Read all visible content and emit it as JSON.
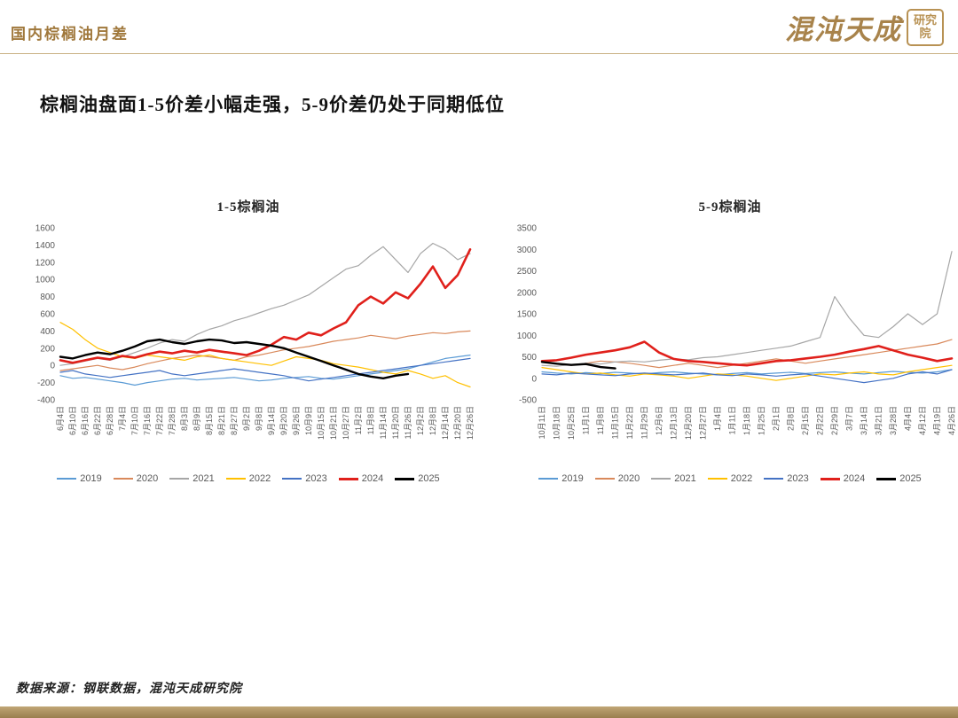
{
  "header": {
    "title": "国内棕榈油月差",
    "logo_brand": "混沌天成",
    "logo_seal": "研究院",
    "accent_color": "#A0783C"
  },
  "subtitle": "棕榈油盘面1-5价差小幅走强，5-9价差仍处于同期低位",
  "footer": {
    "source": "数据来源：钢联数据，混沌天成研究院"
  },
  "theme": {
    "bottom_bar_color": "#A98E5E",
    "tick_label_color": "#595959"
  },
  "chart_data": [
    {
      "type": "line",
      "title": "1-5棕榈油",
      "ylim": [
        -400,
        1600
      ],
      "ytick_step": 200,
      "grid": false,
      "legend_position": "bottom",
      "categories": [
        "6月4日",
        "6月10日",
        "6月16日",
        "6月22日",
        "6月28日",
        "7月4日",
        "7月10日",
        "7月16日",
        "7月22日",
        "7月28日",
        "8月3日",
        "8月9日",
        "8月15日",
        "8月21日",
        "8月27日",
        "9月2日",
        "9月8日",
        "9月14日",
        "9月20日",
        "9月26日",
        "10月9日",
        "10月15日",
        "10月21日",
        "10月27日",
        "11月2日",
        "11月8日",
        "11月14日",
        "11月20日",
        "11月26日",
        "12月2日",
        "12月8日",
        "12月14日",
        "12月20日",
        "12月26日"
      ],
      "series": [
        {
          "name": "2019",
          "color": "#5B9BD5",
          "width": 1.2,
          "values": [
            -120,
            -150,
            -140,
            -160,
            -180,
            -200,
            -230,
            -200,
            -180,
            -160,
            -150,
            -170,
            -160,
            -150,
            -140,
            -160,
            -180,
            -170,
            -150,
            -140,
            -130,
            -150,
            -160,
            -140,
            -120,
            -100,
            -80,
            -60,
            -40,
            0,
            40,
            80,
            100,
            120
          ]
        },
        {
          "name": "2020",
          "color": "#D9895B",
          "width": 1.2,
          "values": [
            -60,
            -40,
            -20,
            0,
            -30,
            -50,
            -20,
            20,
            50,
            80,
            100,
            120,
            100,
            80,
            60,
            100,
            120,
            150,
            180,
            200,
            220,
            250,
            280,
            300,
            320,
            350,
            330,
            310,
            340,
            360,
            380,
            370,
            390,
            400
          ]
        },
        {
          "name": "2021",
          "color": "#A6A6A6",
          "width": 1.2,
          "values": [
            0,
            20,
            50,
            80,
            60,
            100,
            150,
            200,
            260,
            300,
            280,
            360,
            420,
            460,
            520,
            560,
            610,
            660,
            700,
            760,
            820,
            920,
            1020,
            1120,
            1160,
            1280,
            1380,
            1230,
            1080,
            1300,
            1420,
            1350,
            1230,
            1300
          ]
        },
        {
          "name": "2022",
          "color": "#FFC000",
          "width": 1.2,
          "values": [
            500,
            420,
            300,
            200,
            150,
            100,
            80,
            120,
            100,
            80,
            60,
            100,
            120,
            80,
            60,
            40,
            20,
            0,
            50,
            100,
            80,
            60,
            20,
            0,
            -20,
            -50,
            -80,
            -100,
            -60,
            -100,
            -150,
            -120,
            -200,
            -250
          ]
        },
        {
          "name": "2023",
          "color": "#4472C4",
          "width": 1.2,
          "values": [
            -80,
            -60,
            -100,
            -120,
            -140,
            -120,
            -100,
            -80,
            -60,
            -100,
            -120,
            -100,
            -80,
            -60,
            -40,
            -60,
            -80,
            -100,
            -120,
            -150,
            -180,
            -160,
            -140,
            -120,
            -100,
            -80,
            -60,
            -40,
            -20,
            0,
            20,
            40,
            60,
            80
          ]
        },
        {
          "name": "2024",
          "color": "#E0201B",
          "width": 2.6,
          "values": [
            60,
            30,
            60,
            90,
            70,
            110,
            90,
            130,
            160,
            140,
            170,
            150,
            180,
            160,
            140,
            120,
            170,
            240,
            330,
            300,
            380,
            350,
            430,
            500,
            700,
            800,
            720,
            850,
            780,
            950,
            1150,
            900,
            1050,
            1350
          ]
        },
        {
          "name": "2025",
          "color": "#000000",
          "width": 2.4,
          "values": [
            100,
            80,
            120,
            150,
            130,
            170,
            220,
            280,
            300,
            270,
            250,
            280,
            300,
            290,
            260,
            270,
            250,
            230,
            200,
            150,
            100,
            50,
            0,
            -50,
            -100,
            -130,
            -150,
            -120,
            -100,
            null,
            null,
            null,
            null,
            null
          ]
        }
      ]
    },
    {
      "type": "line",
      "title": "5-9棕榈油",
      "ylim": [
        -500,
        3500
      ],
      "ytick_step": 500,
      "grid": false,
      "legend_position": "bottom",
      "categories": [
        "10月11日",
        "10月18日",
        "10月25日",
        "11月1日",
        "11月8日",
        "11月15日",
        "11月22日",
        "11月29日",
        "12月6日",
        "12月13日",
        "12月20日",
        "12月27日",
        "1月4日",
        "1月11日",
        "1月18日",
        "1月25日",
        "2月1日",
        "2月8日",
        "2月15日",
        "2月22日",
        "2月29日",
        "3月7日",
        "3月14日",
        "3月21日",
        "3月28日",
        "4月4日",
        "4月12日",
        "4月19日",
        "4月26日"
      ],
      "series": [
        {
          "name": "2019",
          "color": "#5B9BD5",
          "width": 1.2,
          "values": [
            150,
            120,
            100,
            130,
            110,
            140,
            120,
            100,
            130,
            150,
            120,
            100,
            80,
            110,
            130,
            100,
            120,
            140,
            110,
            130,
            150,
            120,
            100,
            130,
            160,
            140,
            120,
            150,
            200
          ]
        },
        {
          "name": "2020",
          "color": "#D9895B",
          "width": 1.2,
          "values": [
            400,
            350,
            300,
            350,
            400,
            380,
            350,
            300,
            250,
            300,
            350,
            300,
            250,
            300,
            350,
            400,
            450,
            400,
            350,
            400,
            450,
            500,
            550,
            600,
            650,
            700,
            750,
            800,
            900
          ]
        },
        {
          "name": "2021",
          "color": "#A6A6A6",
          "width": 1.2,
          "values": [
            300,
            280,
            320,
            350,
            330,
            380,
            400,
            380,
            420,
            450,
            430,
            480,
            500,
            550,
            600,
            650,
            700,
            750,
            850,
            950,
            1900,
            1400,
            1000,
            950,
            1200,
            1500,
            1250,
            1500,
            2950
          ]
        },
        {
          "name": "2022",
          "color": "#FFC000",
          "width": 1.2,
          "values": [
            250,
            200,
            150,
            100,
            120,
            80,
            50,
            100,
            80,
            50,
            0,
            50,
            100,
            80,
            50,
            0,
            -50,
            0,
            50,
            100,
            80,
            120,
            150,
            100,
            80,
            150,
            200,
            250,
            300
          ]
        },
        {
          "name": "2023",
          "color": "#4472C4",
          "width": 1.2,
          "values": [
            100,
            80,
            120,
            100,
            80,
            60,
            100,
            120,
            100,
            80,
            100,
            120,
            80,
            60,
            100,
            80,
            50,
            80,
            100,
            50,
            0,
            -50,
            -100,
            -50,
            0,
            100,
            150,
            100,
            200
          ]
        },
        {
          "name": "2024",
          "color": "#E0201B",
          "width": 2.6,
          "values": [
            400,
            420,
            480,
            550,
            600,
            650,
            720,
            850,
            600,
            450,
            400,
            380,
            350,
            320,
            300,
            350,
            400,
            420,
            460,
            500,
            550,
            620,
            680,
            750,
            650,
            550,
            480,
            400,
            460
          ]
        },
        {
          "name": "2025",
          "color": "#000000",
          "width": 2.4,
          "values": [
            380,
            340,
            310,
            330,
            260,
            230,
            null,
            null,
            null,
            null,
            null,
            null,
            null,
            null,
            null,
            null,
            null,
            null,
            null,
            null,
            null,
            null,
            null,
            null,
            null,
            null,
            null,
            null,
            null
          ]
        }
      ]
    }
  ]
}
